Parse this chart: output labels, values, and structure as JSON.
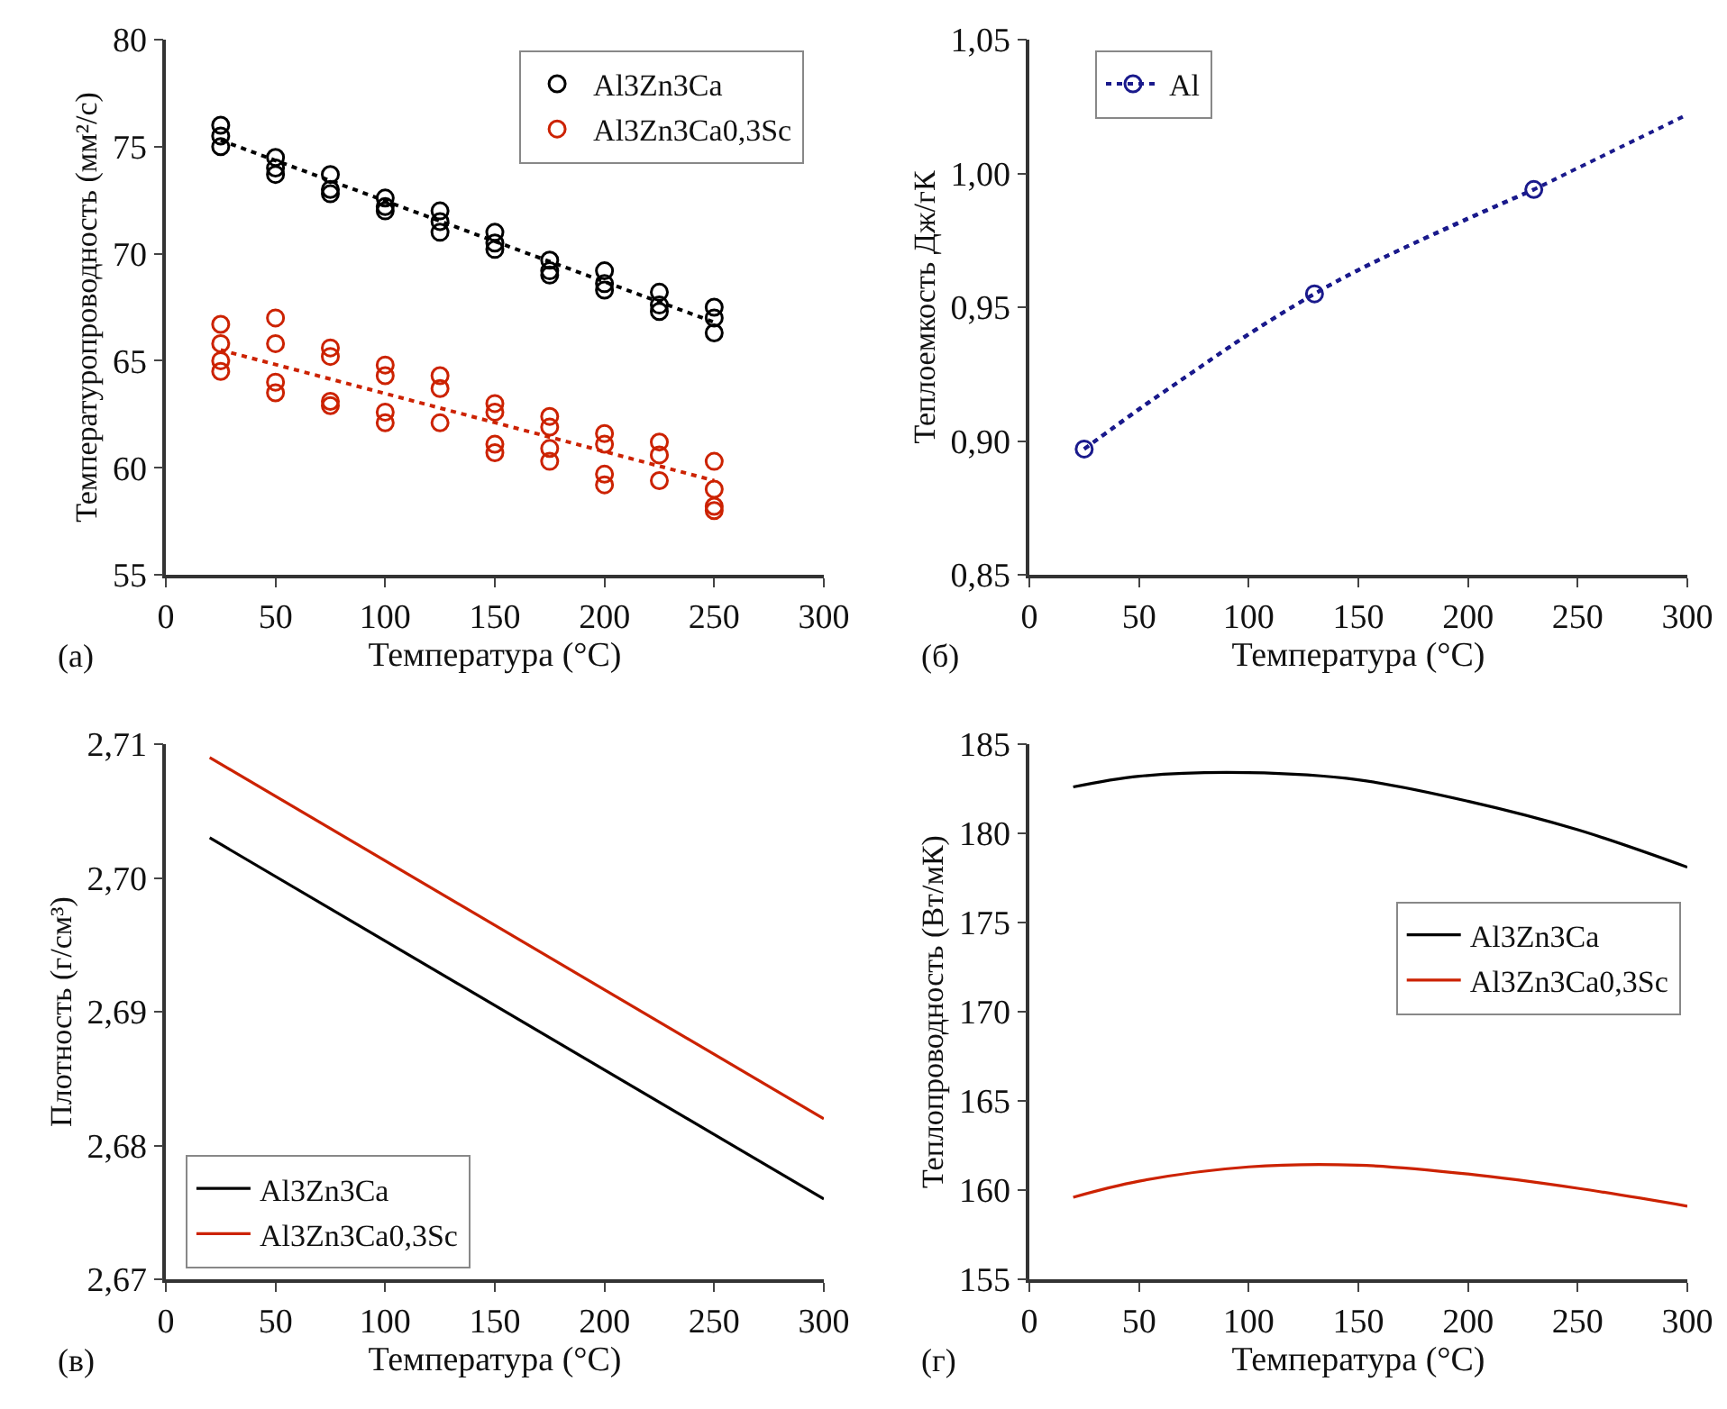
{
  "chart_data": [
    {
      "type": "scatter",
      "xlabel": "Температура (°C)",
      "ylabel": "Температуропроводность (мм²/с)",
      "annotations": [
        "(a)"
      ],
      "xlim": [
        0,
        300
      ],
      "xticks": [
        0,
        50,
        100,
        150,
        200,
        250,
        300
      ],
      "ylim": [
        55,
        80
      ],
      "yticks": [
        55,
        60,
        65,
        70,
        75,
        80
      ],
      "legend": "top right",
      "marker": "circle",
      "grid": false,
      "series": [
        {
          "name": "Al3Zn3Ca",
          "type": "scatter",
          "color": "#000000",
          "x": [
            25,
            25,
            25,
            50,
            50,
            50,
            75,
            75,
            75,
            100,
            100,
            100,
            125,
            125,
            125,
            150,
            150,
            150,
            175,
            175,
            175,
            200,
            200,
            200,
            225,
            225,
            225,
            250,
            250,
            250
          ],
          "values": [
            76,
            75.5,
            75,
            74.5,
            74,
            73.7,
            73.7,
            73,
            72.8,
            72.6,
            72.2,
            72,
            72,
            71.5,
            71,
            71,
            70.5,
            70.2,
            69.7,
            69.2,
            69,
            69.2,
            68.6,
            68.3,
            68.2,
            67.6,
            67.3,
            67.5,
            67,
            66.3
          ]
        },
        {
          "name": "Al3Zn3Ca0,3Sc",
          "type": "scatter",
          "color": "#cc2200",
          "x": [
            25,
            25,
            25,
            25,
            50,
            50,
            50,
            50,
            75,
            75,
            75,
            75,
            100,
            100,
            100,
            100,
            125,
            125,
            125,
            150,
            150,
            150,
            150,
            175,
            175,
            175,
            175,
            200,
            200,
            200,
            200,
            225,
            225,
            225,
            250,
            250,
            250,
            250
          ],
          "values": [
            66.7,
            65.8,
            65,
            64.5,
            67,
            65.8,
            64,
            63.5,
            65.6,
            65.2,
            63.1,
            62.9,
            64.8,
            64.3,
            62.6,
            62.1,
            64.3,
            63.7,
            62.1,
            63,
            62.6,
            61.1,
            60.7,
            62.4,
            61.9,
            60.9,
            60.3,
            61.6,
            61.1,
            59.7,
            59.2,
            61.2,
            60.6,
            59.4,
            60.3,
            59,
            58.2,
            58
          ]
        },
        {
          "type": "line",
          "color": "#000000",
          "line_style": "dotted",
          "marker": "none",
          "x": [
            25,
            250
          ],
          "values": [
            75.3,
            66.8
          ]
        },
        {
          "type": "line",
          "color": "#cc2200",
          "line_style": "dotted",
          "marker": "none",
          "x": [
            25,
            250
          ],
          "values": [
            65.5,
            59.4
          ]
        }
      ]
    },
    {
      "type": "line",
      "xlabel": "Температура (°C)",
      "ylabel": "Теплоемкость Дж/гК",
      "annotations": [
        "(б)"
      ],
      "xlim": [
        0,
        300
      ],
      "xticks": [
        0,
        50,
        100,
        150,
        200,
        250,
        300
      ],
      "ylim": [
        0.85,
        1.05
      ],
      "yticks": [
        {
          "value": 0.85,
          "label": "0,85"
        },
        {
          "value": 0.9,
          "label": "0,90"
        },
        {
          "value": 0.95,
          "label": "0,95"
        },
        {
          "value": 1.0,
          "label": "1,00"
        },
        {
          "value": 1.05,
          "label": "1,05"
        }
      ],
      "legend": "top left",
      "grid": false,
      "series": [
        {
          "name": "Al",
          "type": "line",
          "color": "#1a1a8c",
          "line_style": "dotted",
          "marker": "circle",
          "x": [
            25,
            130,
            230
          ],
          "values": [
            0.897,
            0.955,
            0.994
          ]
        },
        {
          "type": "line",
          "color": "#1a1a8c",
          "line_style": "dotted",
          "marker": "none",
          "x": [
            25,
            50,
            75,
            100,
            130,
            150,
            200,
            230,
            250,
            300
          ],
          "values": [
            0.897,
            0.912,
            0.926,
            0.94,
            0.955,
            0.964,
            0.983,
            0.994,
            1.002,
            1.022
          ]
        }
      ]
    },
    {
      "type": "line",
      "xlabel": "Температура (°C)",
      "ylabel": "Плотность (г/см³)",
      "annotations": [
        "(в)"
      ],
      "xlim": [
        0,
        300
      ],
      "xticks": [
        0,
        50,
        100,
        150,
        200,
        250,
        300
      ],
      "ylim": [
        2.67,
        2.71
      ],
      "yticks": [
        {
          "value": 2.67,
          "label": "2,67"
        },
        {
          "value": 2.68,
          "label": "2,68"
        },
        {
          "value": 2.69,
          "label": "2,69"
        },
        {
          "value": 2.7,
          "label": "2,70"
        },
        {
          "value": 2.71,
          "label": "2,71"
        }
      ],
      "legend": "bottom left",
      "grid": false,
      "marker": "none",
      "line_style": "solid",
      "series": [
        {
          "name": "Al3Zn3Ca",
          "color": "#000000",
          "x": [
            20,
            300
          ],
          "values": [
            2.703,
            2.676
          ]
        },
        {
          "name": "Al3Zn3Ca0,3Sc",
          "color": "#cc2200",
          "x": [
            20,
            300
          ],
          "values": [
            2.709,
            2.682
          ]
        }
      ]
    },
    {
      "type": "line",
      "xlabel": "Температура (°C)",
      "ylabel": "Теплопроводность (Вт/мК)",
      "annotations": [
        "(г)"
      ],
      "xlim": [
        0,
        300
      ],
      "xticks": [
        0,
        50,
        100,
        150,
        200,
        250,
        300
      ],
      "ylim": [
        155,
        185
      ],
      "yticks": [
        155,
        160,
        165,
        170,
        175,
        180,
        185
      ],
      "legend": "right",
      "grid": false,
      "marker": "none",
      "line_style": "solid",
      "series": [
        {
          "name": "Al3Zn3Ca",
          "color": "#000000",
          "x": [
            20,
            50,
            100,
            150,
            200,
            250,
            300
          ],
          "values": [
            182.6,
            183.2,
            183.4,
            183,
            181.8,
            180.2,
            178.1
          ]
        },
        {
          "name": "Al3Zn3Ca0,3Sc",
          "color": "#cc2200",
          "x": [
            20,
            50,
            100,
            150,
            200,
            250,
            300
          ],
          "values": [
            159.6,
            160.5,
            161.3,
            161.4,
            160.9,
            160.1,
            159.1
          ]
        }
      ]
    }
  ]
}
